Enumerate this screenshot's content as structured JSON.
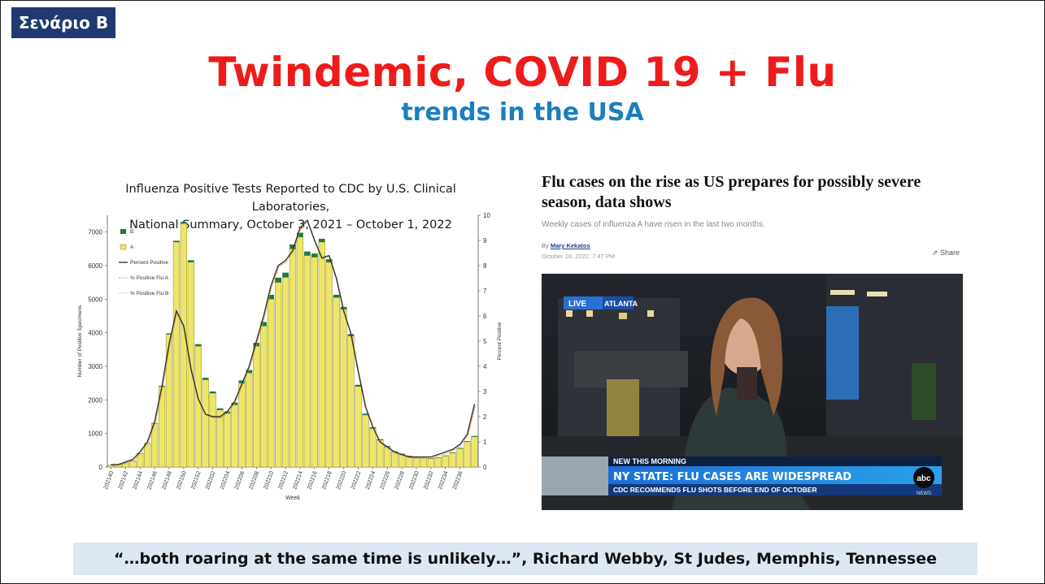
{
  "slide": {
    "badge": "Σενάριο Β",
    "title": "Twindemic, COVID 19 + Flu",
    "subtitle": "trends in the USA",
    "quote": "“…both roaring at the same time is unlikely…”, Richard Webby, St Judes, Memphis, Tennessee"
  },
  "chart_data": {
    "type": "bar",
    "title_line1": "Influenza Positive Tests Reported to CDC by U.S. Clinical Laboratories,",
    "title_line2": "National Summary, October 3, 2021 – October 1, 2022",
    "xlabel": "Week",
    "ylabel": "Number of Positive Specimens",
    "ylabel_right": "Percent Positive",
    "ylim": [
      0,
      7500
    ],
    "ylim_right": [
      0,
      10
    ],
    "yticks": [
      "0",
      "1000",
      "2000",
      "3000",
      "4000",
      "5000",
      "6000",
      "7000"
    ],
    "yticks_right": [
      "0",
      "1",
      "2",
      "3",
      "4",
      "5",
      "6",
      "7",
      "8",
      "9",
      "10"
    ],
    "xticks": [
      "202140",
      "202142",
      "202144",
      "202146",
      "202148",
      "202150",
      "202152",
      "202202",
      "202204",
      "202206",
      "202208",
      "202210",
      "202212",
      "202214",
      "202216",
      "202218",
      "202220",
      "202222",
      "202224",
      "202226",
      "202228",
      "202230",
      "202232",
      "202234",
      "202236"
    ],
    "legend": [
      "B",
      "A",
      "Percent Positive",
      "% Positive Flu A",
      "% Positive Flu B"
    ],
    "colors": {
      "A": "#ede66a",
      "B": "#1f7a3a",
      "percent": "#333333",
      "fluA": "#d8a040"
    },
    "series": [
      {
        "name": "A",
        "values": [
          50,
          80,
          120,
          180,
          400,
          700,
          1300,
          2400,
          3950,
          6700,
          7250,
          6100,
          3600,
          2600,
          2200,
          1700,
          1600,
          1850,
          2500,
          2800,
          3600,
          4200,
          5000,
          5500,
          5650,
          6500,
          6850,
          6300,
          6250,
          6700,
          6100,
          5050,
          4700,
          3900,
          2400,
          1550,
          1150,
          800,
          600,
          450,
          380,
          320,
          280,
          260,
          250,
          270,
          330,
          420,
          550,
          750,
          900
        ]
      },
      {
        "name": "B",
        "values": [
          5,
          5,
          5,
          5,
          10,
          10,
          15,
          20,
          30,
          40,
          50,
          60,
          60,
          60,
          50,
          50,
          60,
          70,
          80,
          90,
          100,
          120,
          130,
          140,
          140,
          130,
          130,
          120,
          110,
          100,
          90,
          80,
          70,
          60,
          50,
          40,
          35,
          30,
          25,
          20,
          18,
          15,
          15,
          15,
          15,
          15,
          15,
          15,
          20,
          20,
          25
        ]
      },
      {
        "name": "Percent Positive",
        "values": [
          0.1,
          0.1,
          0.2,
          0.3,
          0.6,
          1.0,
          1.8,
          3.2,
          4.9,
          6.2,
          5.6,
          3.9,
          2.7,
          2.1,
          2.0,
          2.0,
          2.2,
          2.6,
          3.3,
          4.0,
          5.0,
          6.0,
          7.2,
          8.0,
          8.2,
          8.6,
          9.5,
          9.8,
          9.0,
          8.3,
          8.4,
          7.5,
          6.2,
          5.3,
          3.8,
          2.4,
          1.6,
          1.0,
          0.8,
          0.6,
          0.5,
          0.4,
          0.4,
          0.4,
          0.4,
          0.5,
          0.6,
          0.7,
          0.9,
          1.3,
          2.5
        ]
      }
    ]
  },
  "article": {
    "headline": "Flu cases on the rise as US prepares for possibly severe season, data shows",
    "dek": "Weekly cases of influenza A have risen in the last two months.",
    "by": "By",
    "author": "Mary Kekatos",
    "date": "October 10, 2022, 7:47 PM",
    "share": "Share",
    "video": {
      "live_label": "LIVE",
      "location": "ATLANTA",
      "kicker": "NEW THIS MORNING",
      "headline": "NY STATE: FLU CASES ARE WIDESPREAD",
      "subline": "CDC RECOMMENDS FLU SHOTS BEFORE END OF OCTOBER",
      "network": "abc",
      "network_sub": "NEWS"
    }
  }
}
